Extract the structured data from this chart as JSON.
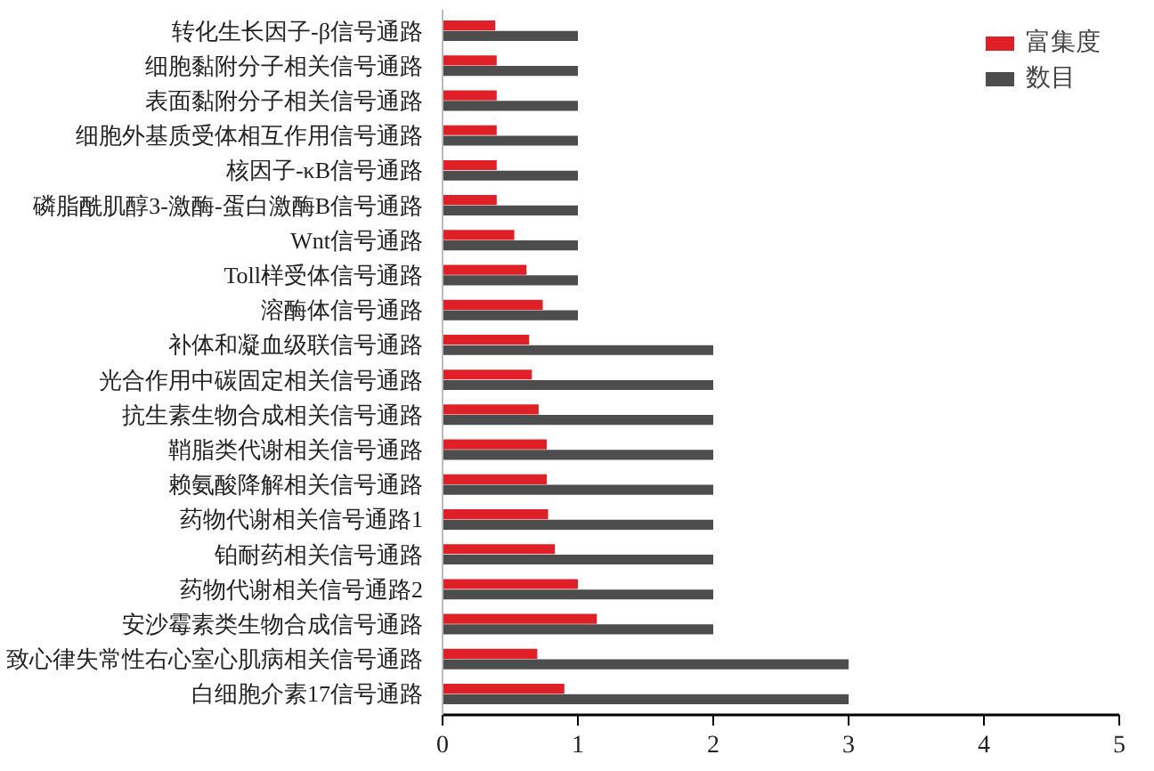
{
  "chart_data": {
    "type": "bar",
    "orientation": "horizontal",
    "categories": [
      "转化生长因子-β信号通路",
      "细胞黏附分子相关信号通路",
      "表面黏附分子相关信号通路",
      "细胞外基质受体相互作用信号通路",
      "核因子-κB信号通路",
      "磷脂酰肌醇3-激酶-蛋白激酶B信号通路",
      "Wnt信号通路",
      "Toll样受体信号通路",
      "溶酶体信号通路",
      "补体和凝血级联信号通路",
      "光合作用中碳固定相关信号通路",
      "抗生素生物合成相关信号通路",
      "鞘脂类代谢相关信号通路",
      "赖氨酸降解相关信号通路",
      "药物代谢相关信号通路1",
      "铂耐药相关信号通路",
      "药物代谢相关信号通路2",
      "安沙霉素类生物合成信号通路",
      "致心律失常性右心室心肌病相关信号通路",
      "白细胞介素17信号通路"
    ],
    "series": [
      {
        "name": "富集度",
        "color": "#e02027",
        "values": [
          0.39,
          0.4,
          0.4,
          0.4,
          0.4,
          0.4,
          0.53,
          0.62,
          0.74,
          0.64,
          0.66,
          0.71,
          0.77,
          0.77,
          0.78,
          0.83,
          1.0,
          1.14,
          0.7,
          0.9
        ]
      },
      {
        "name": "数目",
        "color": "#4d4d4d",
        "values": [
          1,
          1,
          1,
          1,
          1,
          1,
          1,
          1,
          1,
          2,
          2,
          2,
          2,
          2,
          2,
          2,
          2,
          2,
          3,
          3
        ]
      }
    ],
    "xlim": [
      0,
      5
    ],
    "xticks": [
      0,
      1,
      2,
      3,
      4,
      5
    ],
    "grid": false,
    "legend": "top right"
  }
}
